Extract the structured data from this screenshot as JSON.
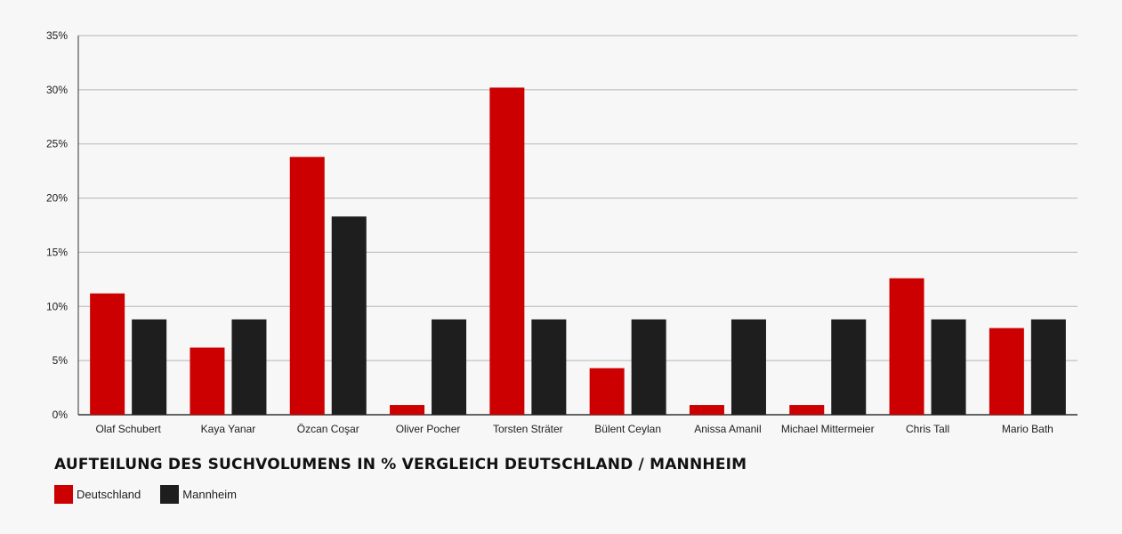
{
  "chart_data": {
    "type": "bar",
    "title": "AUFTEILUNG DES SUCHVOLUMENS IN % VERGLEICH DEUTSCHLAND / MANNHEIM",
    "categories": [
      "Olaf Schubert",
      "Kaya Yanar",
      "Özcan Coşar",
      "Oliver Pocher",
      "Torsten Sträter",
      "Bülent Ceylan",
      "Anissa Amanil",
      "Michael Mittermeier",
      "Chris Tall",
      "Mario Bath"
    ],
    "series": [
      {
        "name": "Deutschland",
        "color": "#cc0000",
        "values": [
          11.2,
          6.2,
          23.8,
          0.9,
          30.2,
          4.3,
          0.9,
          0.9,
          12.6,
          8.0
        ]
      },
      {
        "name": "Mannheim",
        "color": "#1e1e1e",
        "values": [
          8.8,
          8.8,
          18.3,
          8.8,
          8.8,
          8.8,
          8.8,
          8.8,
          8.8,
          8.8
        ]
      }
    ],
    "yticks": [
      "0%",
      "5%",
      "10%",
      "15%",
      "20%",
      "25%",
      "30%",
      "35%"
    ],
    "ylim": [
      0,
      35
    ],
    "grid": true,
    "legend_position": "bottom-left"
  }
}
